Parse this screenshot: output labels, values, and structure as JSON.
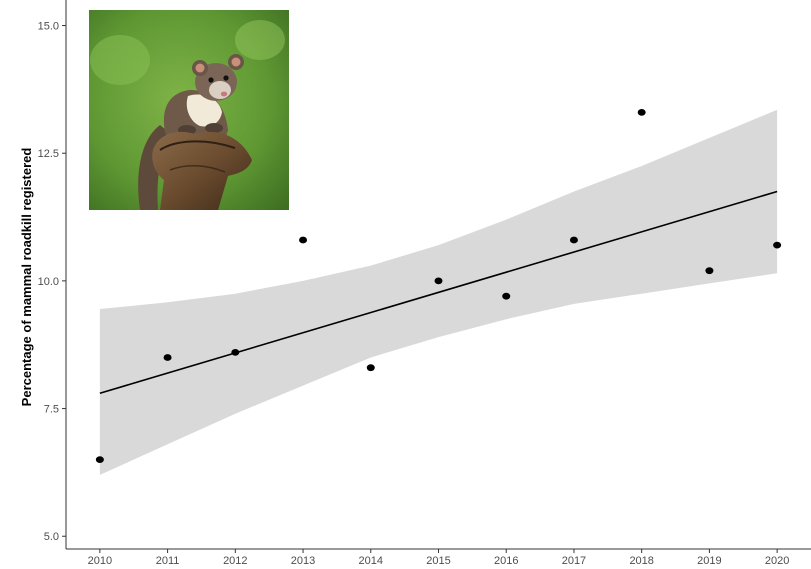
{
  "chart_data": {
    "type": "scatter",
    "title": "",
    "xlabel": "",
    "ylabel": "Percentage of mammal roadkill registered",
    "x": [
      2010,
      2011,
      2012,
      2013,
      2014,
      2015,
      2016,
      2017,
      2018,
      2019,
      2020
    ],
    "y": [
      6.5,
      8.5,
      8.6,
      10.8,
      8.3,
      10.0,
      9.7,
      10.8,
      13.3,
      10.2,
      10.7
    ],
    "xlim": [
      2009.5,
      2020.5
    ],
    "ylim": [
      4.75,
      15.5
    ],
    "xticks": [
      2010,
      2011,
      2012,
      2013,
      2014,
      2015,
      2016,
      2017,
      2018,
      2019,
      2020
    ],
    "xtick_labels": [
      "2010",
      "2011",
      "2012",
      "2013",
      "2014",
      "2015",
      "2016",
      "2017",
      "2018",
      "2019",
      "2020"
    ],
    "yticks": [
      5.0,
      7.5,
      10.0,
      12.5,
      15.0
    ],
    "ytick_labels": [
      "5.0",
      "7.5",
      "10.0",
      "12.5",
      "15.0"
    ],
    "trend_line": {
      "start": [
        2010,
        7.8
      ],
      "end": [
        2020,
        11.75
      ]
    },
    "confidence_band": {
      "x": [
        2010,
        2011,
        2012,
        2013,
        2014,
        2015,
        2016,
        2017,
        2018,
        2019,
        2020
      ],
      "upper": [
        9.45,
        9.58,
        9.75,
        10.0,
        10.3,
        10.7,
        11.2,
        11.75,
        12.25,
        12.8,
        13.35
      ],
      "lower": [
        6.2,
        6.8,
        7.4,
        7.95,
        8.5,
        8.9,
        9.25,
        9.55,
        9.75,
        9.95,
        10.15
      ]
    },
    "grid": false,
    "legend": "none",
    "colors": {
      "points": "#000000",
      "trend_line": "#000000",
      "confidence_band": "#d9d9d9",
      "axis": "#333333"
    },
    "inset_image": "pine-marten-photo"
  }
}
